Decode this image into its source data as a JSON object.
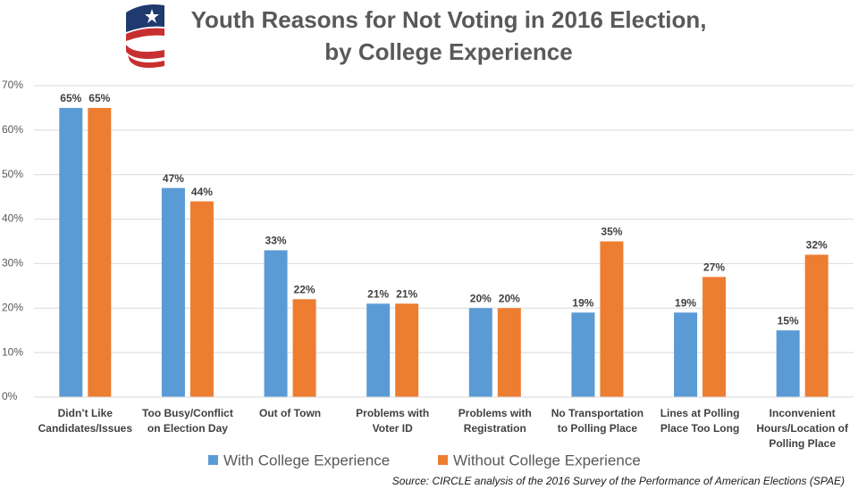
{
  "chart_data": {
    "type": "bar",
    "title": [
      "Youth Reasons for Not Voting in 2016 Election,",
      "by College Experience"
    ],
    "categories": [
      "Didn’t Like Candidates/Issues",
      "Too Busy/Conflict on Election Day",
      "Out of Town",
      "Problems with Voter ID",
      "Problems with Registration",
      "No Transportation to Polling Place",
      "Lines at Polling Place Too Long",
      "Inconvenient Hours/Location of Polling Place"
    ],
    "series": [
      {
        "name": "With College Experience",
        "color": "#5b9bd5",
        "values": [
          65,
          47,
          33,
          21,
          20,
          19,
          19,
          15
        ],
        "value_labels": [
          "65%",
          "47%",
          "33%",
          "21%",
          "20%",
          "19%",
          "19%",
          "15%"
        ]
      },
      {
        "name": "Without College Experience",
        "color": "#ed7d31",
        "values": [
          65,
          44,
          22,
          21,
          20,
          35,
          27,
          32
        ],
        "value_labels": [
          "65%",
          "44%",
          "22%",
          "21%",
          "20%",
          "35%",
          "27%",
          "32%"
        ]
      }
    ],
    "ylim": [
      0,
      70
    ],
    "yticks": [
      {
        "value": 0,
        "label": "0%"
      },
      {
        "value": 10,
        "label": "10%"
      },
      {
        "value": 20,
        "label": "20%"
      },
      {
        "value": 30,
        "label": "30%"
      },
      {
        "value": 40,
        "label": "40%"
      },
      {
        "value": 50,
        "label": "50%"
      },
      {
        "value": 60,
        "label": "60%"
      },
      {
        "value": 70,
        "label": "70%"
      }
    ],
    "grid": true,
    "source": "Source: CIRCLE analysis of the 2016 Survey of the Performance of American Elections (SPAE)"
  }
}
